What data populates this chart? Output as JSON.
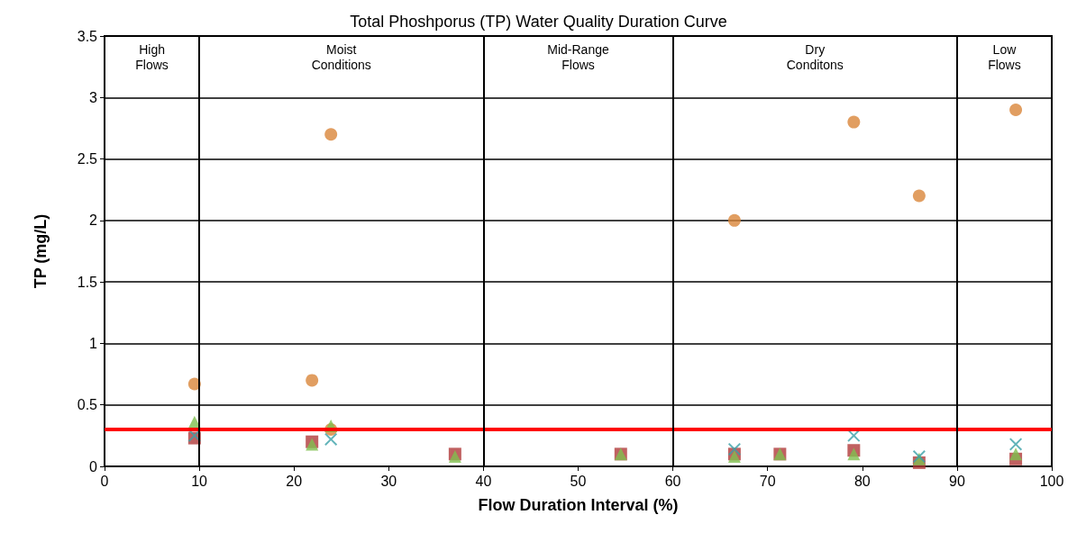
{
  "chart_data": {
    "type": "scatter",
    "title": "Total Phoshporus (TP) Water Quality Duration Curve",
    "xlabel": "Flow Duration Interval (%)",
    "ylabel": "TP (mg/L)",
    "xlim": [
      0,
      100
    ],
    "xticks": [
      0,
      10,
      20,
      30,
      40,
      50,
      60,
      70,
      80,
      90,
      100
    ],
    "ylim": [
      0,
      3.5
    ],
    "yticks": [
      0,
      0.5,
      1,
      1.5,
      2,
      2.5,
      3,
      3.5
    ],
    "grid": "y",
    "series": [
      {
        "color": "#d9863a",
        "marker": "circle",
        "x": [
          9.5,
          21.9,
          23.9,
          23.9,
          66.5,
          79.1,
          86.0,
          96.2
        ],
        "values": [
          0.67,
          0.7,
          2.7,
          0.3,
          2.0,
          2.8,
          2.2,
          2.9
        ]
      },
      {
        "color": "#b03a3a",
        "marker": "square",
        "x": [
          9.5,
          21.9,
          37,
          54.5,
          66.5,
          71.3,
          79.1,
          86.0,
          96.2
        ],
        "values": [
          0.23,
          0.2,
          0.1,
          0.1,
          0.1,
          0.1,
          0.13,
          0.03,
          0.06
        ]
      },
      {
        "color": "#7fbf4f",
        "marker": "triangle",
        "x": [
          9.5,
          21.9,
          23.9,
          37,
          54.5,
          66.5,
          71.3,
          79.1,
          86.0,
          96.2
        ],
        "values": [
          0.36,
          0.18,
          0.33,
          0.08,
          0.1,
          0.08,
          0.1,
          0.1,
          0.06,
          0.1
        ]
      },
      {
        "color": "#3aa0a8",
        "marker": "cross",
        "x": [
          9.5,
          23.9,
          66.5,
          79.1,
          86.0,
          96.2
        ],
        "values": [
          0.25,
          0.22,
          0.14,
          0.25,
          0.08,
          0.18
        ]
      }
    ],
    "ref_lines": [
      {
        "axis": "y",
        "value": 0.3,
        "color": "#ff0000"
      },
      {
        "axis": "x",
        "value": 10,
        "color": "#000000"
      },
      {
        "axis": "x",
        "value": 40,
        "color": "#000000"
      },
      {
        "axis": "x",
        "value": 60,
        "color": "#000000"
      },
      {
        "axis": "x",
        "value": 90,
        "color": "#000000"
      }
    ],
    "annotations": [
      "High\nFlows",
      "Moist\nConditions",
      "Mid-Range\nFlows",
      "Dry\nConditons",
      "Low\nFlows"
    ]
  }
}
